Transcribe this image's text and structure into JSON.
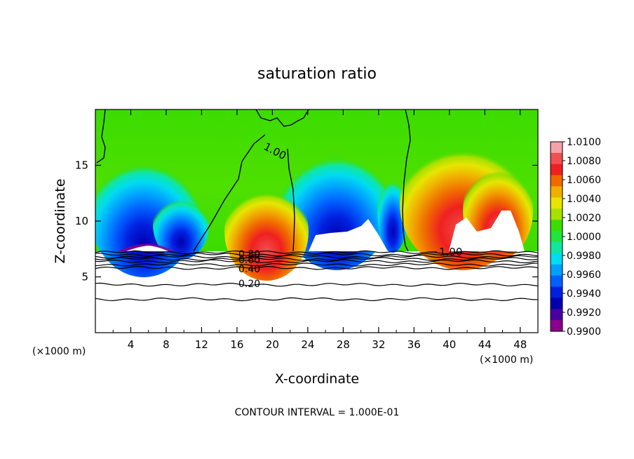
{
  "chart_data": {
    "type": "heatmap",
    "title": "saturation ratio",
    "xlabel": "X-coordinate",
    "ylabel": "Z-coordinate",
    "x_unit_label": "(×1000 m)",
    "xlim": [
      0,
      50
    ],
    "ylim": [
      0,
      20
    ],
    "x_ticks": [
      "4",
      "8",
      "12",
      "16",
      "20",
      "24",
      "28",
      "32",
      "36",
      "40",
      "44",
      "48"
    ],
    "x_tick_values": [
      4,
      8,
      12,
      16,
      20,
      24,
      28,
      32,
      36,
      40,
      44,
      48
    ],
    "y_ticks": [
      "5",
      "10",
      "15"
    ],
    "y_tick_values": [
      5,
      10,
      15
    ],
    "footer": "CONTOUR INTERVAL = 1.000E-01",
    "colorbar": {
      "labels": [
        "1.0100",
        "1.0080",
        "1.0060",
        "1.0040",
        "1.0020",
        "1.0000",
        "0.9980",
        "0.9960",
        "0.9940",
        "0.9920",
        "0.9900"
      ],
      "colors": [
        "#f8a0a8",
        "#f05050",
        "#f02020",
        "#f06a00",
        "#f0b000",
        "#e6e600",
        "#a8e000",
        "#3cdc00",
        "#1ee63c",
        "#10e6a0",
        "#00dcf0",
        "#00a0ff",
        "#0060ff",
        "#0020e0",
        "#0000b0",
        "#4800a0",
        "#8c0090"
      ]
    },
    "contour_labels": [
      "1.00",
      "1.00",
      "0.80",
      "0.60",
      "0.40",
      "0.20"
    ],
    "contour_levels_below_cloud_z": [
      7.2,
      7.0,
      6.8,
      6.6,
      6.4,
      6.1,
      5.8,
      4.3,
      3.0
    ]
  }
}
